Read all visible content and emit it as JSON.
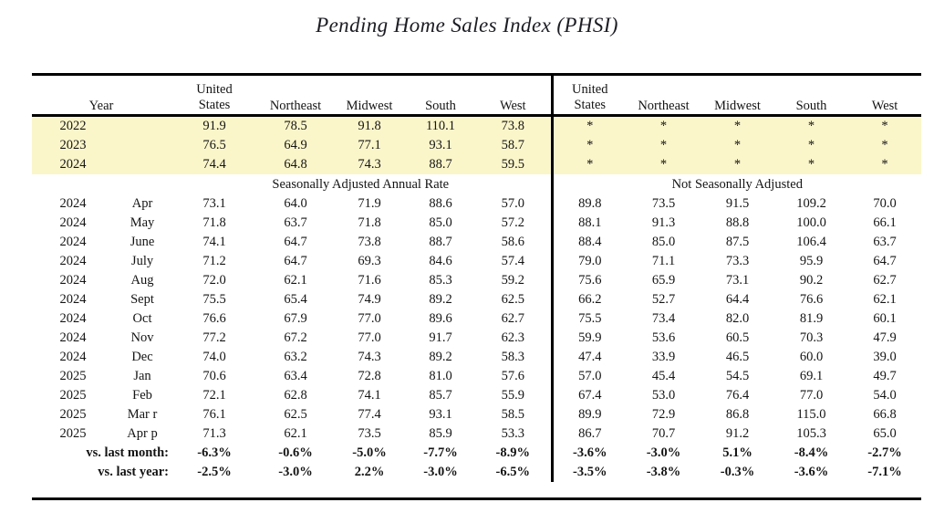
{
  "title": "Pending Home Sales Index (PHSI)",
  "colors": {
    "highlight_band": "#fbf6ca",
    "rule": "#000000",
    "background": "#ffffff"
  },
  "table": {
    "headers": {
      "year": "Year",
      "left": [
        "United States",
        "Northeast",
        "Midwest",
        "South",
        "West"
      ],
      "right": [
        "United States",
        "Northeast",
        "Midwest",
        "South",
        "West"
      ]
    },
    "group_labels": {
      "left": "Seasonally Adjusted Annual Rate",
      "right": "Not Seasonally Adjusted"
    },
    "annual_rows": [
      {
        "year": "2022",
        "left": [
          "91.9",
          "78.5",
          "91.8",
          "110.1",
          "73.8"
        ],
        "right": [
          "*",
          "*",
          "*",
          "*",
          "*"
        ]
      },
      {
        "year": "2023",
        "left": [
          "76.5",
          "64.9",
          "77.1",
          "93.1",
          "58.7"
        ],
        "right": [
          "*",
          "*",
          "*",
          "*",
          "*"
        ]
      },
      {
        "year": "2024",
        "left": [
          "74.4",
          "64.8",
          "74.3",
          "88.7",
          "59.5"
        ],
        "right": [
          "*",
          "*",
          "*",
          "*",
          "*"
        ]
      }
    ],
    "monthly_rows": [
      {
        "year": "2024",
        "month": "Apr",
        "left": [
          "73.1",
          "64.0",
          "71.9",
          "88.6",
          "57.0"
        ],
        "right": [
          "89.8",
          "73.5",
          "91.5",
          "109.2",
          "70.0"
        ]
      },
      {
        "year": "2024",
        "month": "May",
        "left": [
          "71.8",
          "63.7",
          "71.8",
          "85.0",
          "57.2"
        ],
        "right": [
          "88.1",
          "91.3",
          "88.8",
          "100.0",
          "66.1"
        ]
      },
      {
        "year": "2024",
        "month": "June",
        "left": [
          "74.1",
          "64.7",
          "73.8",
          "88.7",
          "58.6"
        ],
        "right": [
          "88.4",
          "85.0",
          "87.5",
          "106.4",
          "63.7"
        ]
      },
      {
        "year": "2024",
        "month": "July",
        "left": [
          "71.2",
          "64.7",
          "69.3",
          "84.6",
          "57.4"
        ],
        "right": [
          "79.0",
          "71.1",
          "73.3",
          "95.9",
          "64.7"
        ]
      },
      {
        "year": "2024",
        "month": "Aug",
        "left": [
          "72.0",
          "62.1",
          "71.6",
          "85.3",
          "59.2"
        ],
        "right": [
          "75.6",
          "65.9",
          "73.1",
          "90.2",
          "62.7"
        ]
      },
      {
        "year": "2024",
        "month": "Sept",
        "left": [
          "75.5",
          "65.4",
          "74.9",
          "89.2",
          "62.5"
        ],
        "right": [
          "66.2",
          "52.7",
          "64.4",
          "76.6",
          "62.1"
        ]
      },
      {
        "year": "2024",
        "month": "Oct",
        "left": [
          "76.6",
          "67.9",
          "77.0",
          "89.6",
          "62.7"
        ],
        "right": [
          "75.5",
          "73.4",
          "82.0",
          "81.9",
          "60.1"
        ]
      },
      {
        "year": "2024",
        "month": "Nov",
        "left": [
          "77.2",
          "67.2",
          "77.0",
          "91.7",
          "62.3"
        ],
        "right": [
          "59.9",
          "53.6",
          "60.5",
          "70.3",
          "47.9"
        ]
      },
      {
        "year": "2024",
        "month": "Dec",
        "left": [
          "74.0",
          "63.2",
          "74.3",
          "89.2",
          "58.3"
        ],
        "right": [
          "47.4",
          "33.9",
          "46.5",
          "60.0",
          "39.0"
        ]
      },
      {
        "year": "2025",
        "month": "Jan",
        "left": [
          "70.6",
          "63.4",
          "72.8",
          "81.0",
          "57.6"
        ],
        "right": [
          "57.0",
          "45.4",
          "54.5",
          "69.1",
          "49.7"
        ]
      },
      {
        "year": "2025",
        "month": "Feb",
        "left": [
          "72.1",
          "62.8",
          "74.1",
          "85.7",
          "55.9"
        ],
        "right": [
          "67.4",
          "53.0",
          "76.4",
          "77.0",
          "54.0"
        ]
      },
      {
        "year": "2025",
        "month": "Mar r",
        "left": [
          "76.1",
          "62.5",
          "77.4",
          "93.1",
          "58.5"
        ],
        "right": [
          "89.9",
          "72.9",
          "86.8",
          "115.0",
          "66.8"
        ]
      },
      {
        "year": "2025",
        "month": "Apr p",
        "left": [
          "71.3",
          "62.1",
          "73.5",
          "85.9",
          "53.3"
        ],
        "right": [
          "86.7",
          "70.7",
          "91.2",
          "105.3",
          "65.0"
        ]
      }
    ],
    "summary_rows": [
      {
        "label": "vs. last month:",
        "left": [
          "-6.3%",
          "-0.6%",
          "-5.0%",
          "-7.7%",
          "-8.9%"
        ],
        "right": [
          "-3.6%",
          "-3.0%",
          "5.1%",
          "-8.4%",
          "-2.7%"
        ]
      },
      {
        "label": "vs. last year:",
        "left": [
          "-2.5%",
          "-3.0%",
          "2.2%",
          "-3.0%",
          "-6.5%"
        ],
        "right": [
          "-3.5%",
          "-3.8%",
          "-0.3%",
          "-3.6%",
          "-7.1%"
        ]
      }
    ]
  }
}
